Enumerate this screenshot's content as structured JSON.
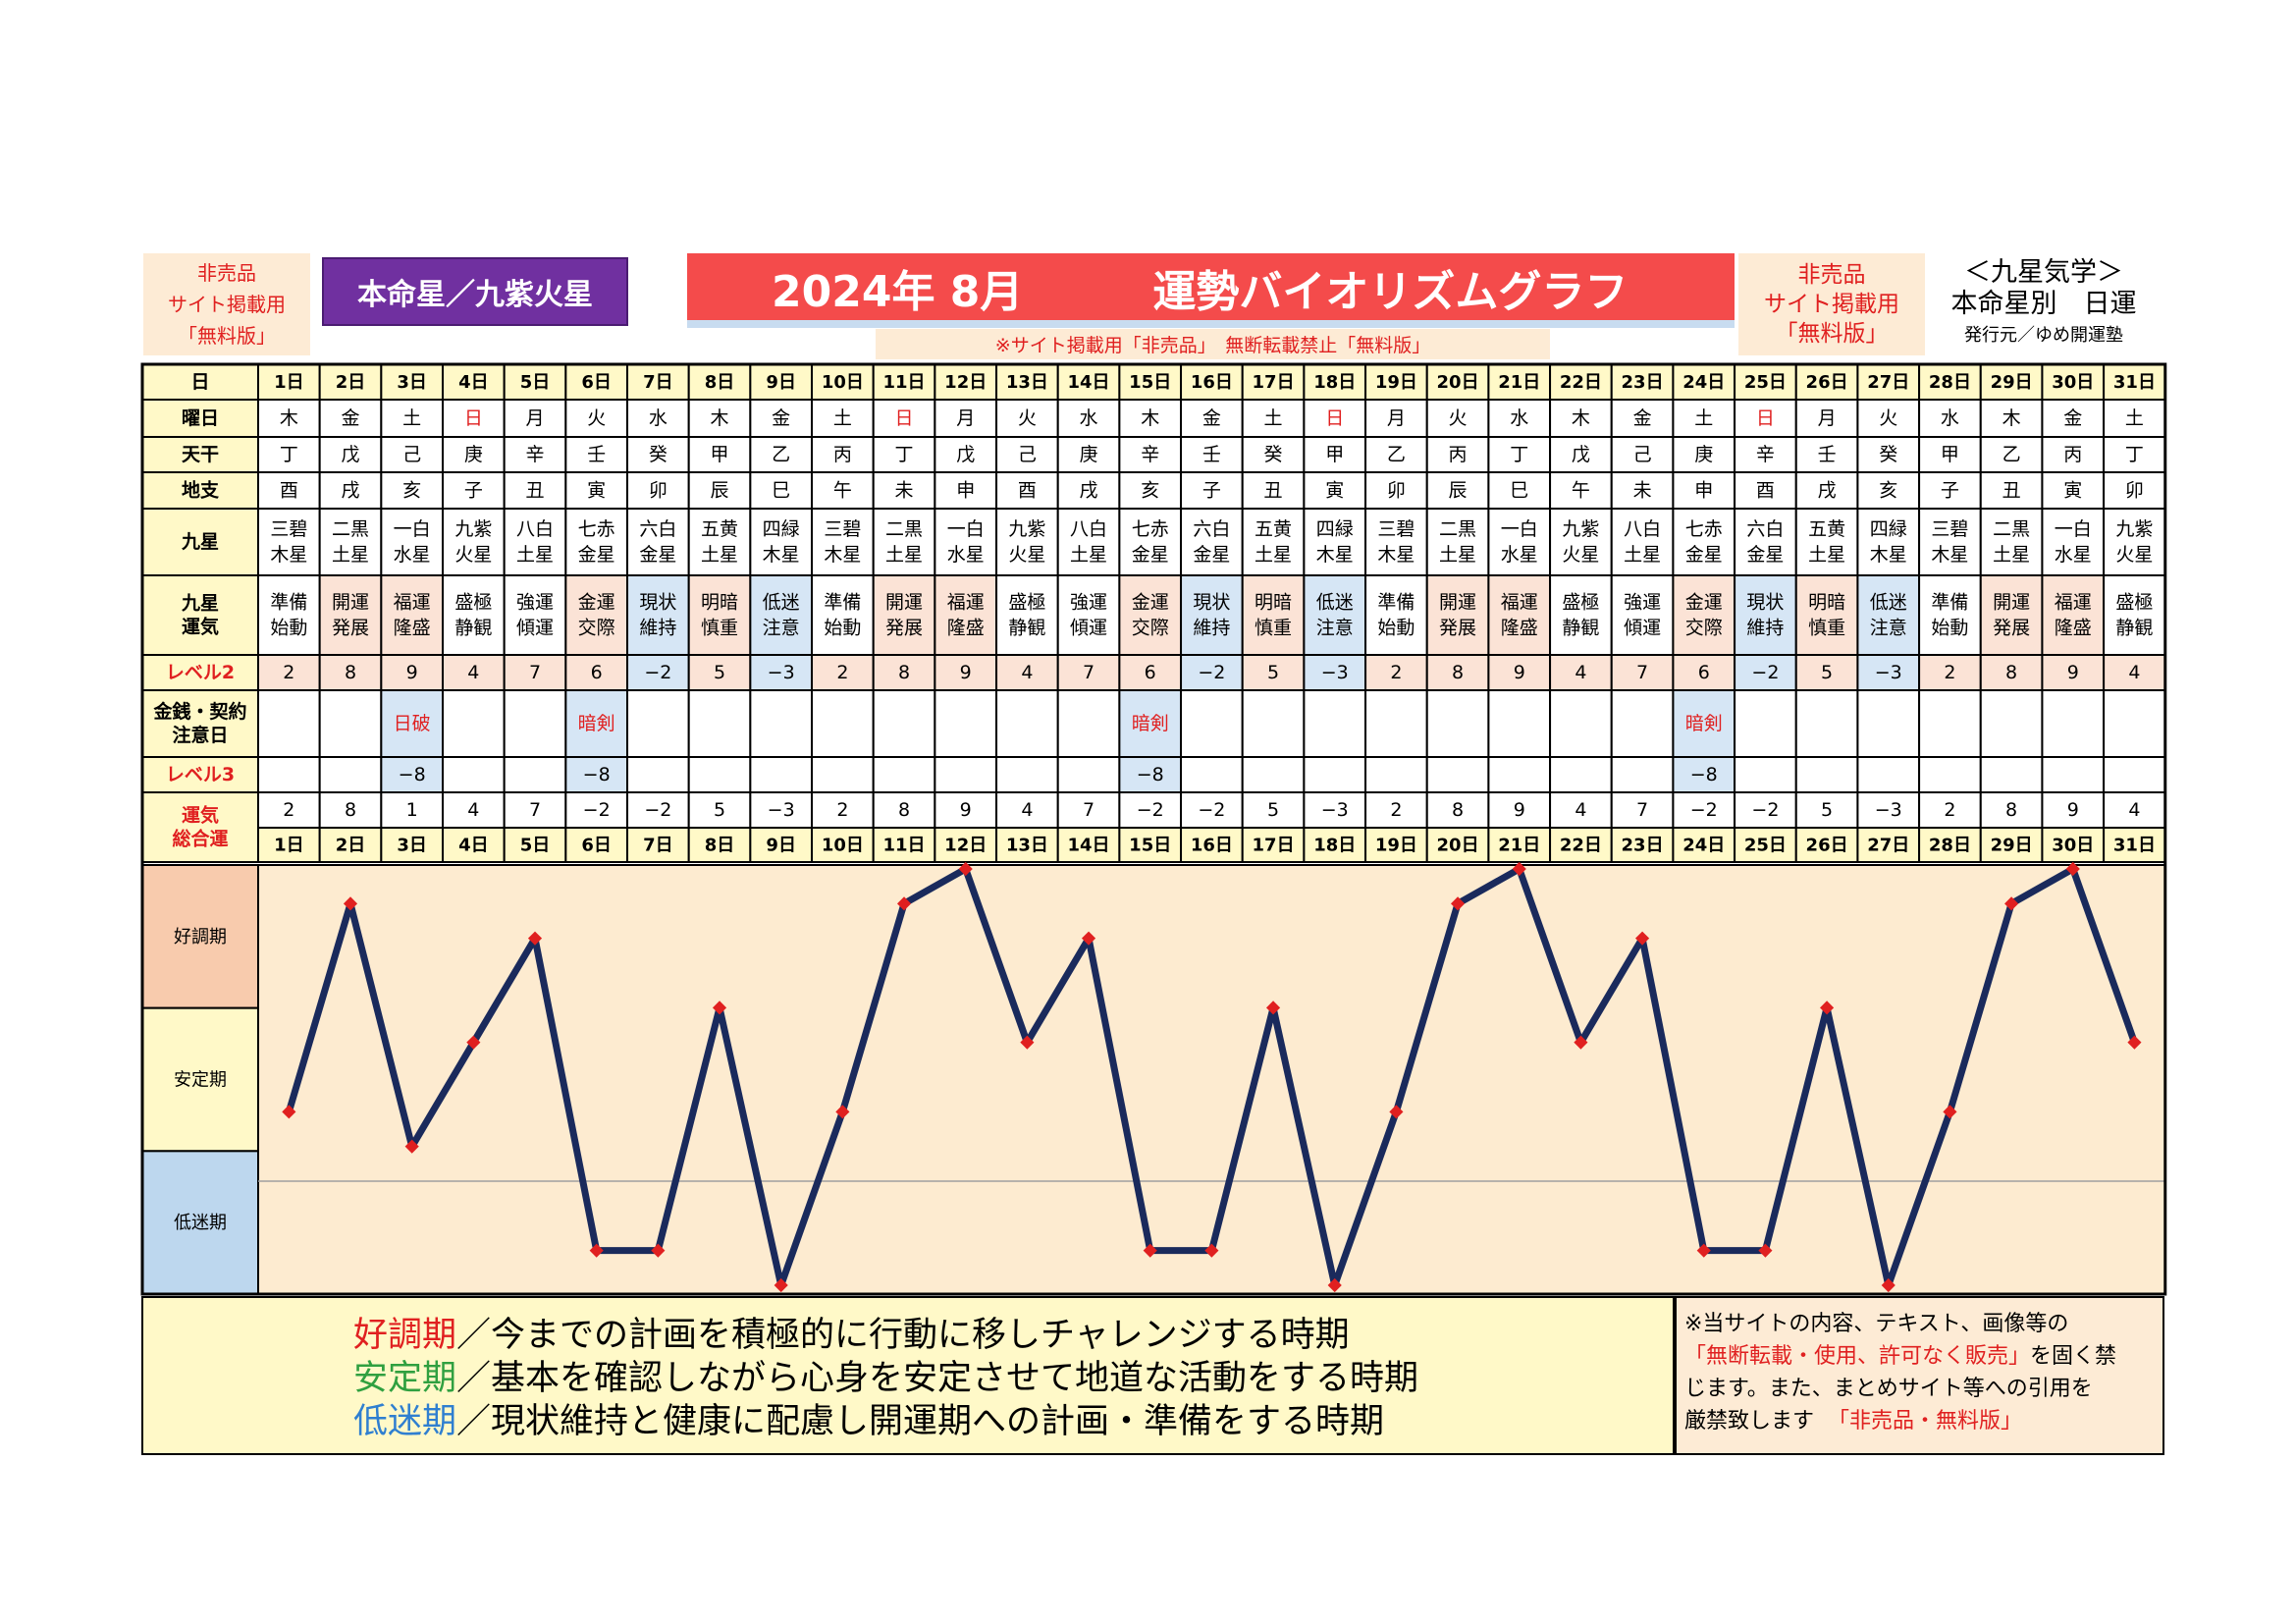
{
  "header": {
    "left_line1": "非売品",
    "left_line2": "サイト掲載用",
    "left_line3": "「無料版」",
    "honmei": "本命星／九紫火星",
    "title": "2024年 8月　　　運勢バイオリズムグラフ",
    "notice": "※サイト掲載用「非売品」　無断転載禁止「無料版」",
    "right_line1": "非売品",
    "right_line2": "サイト掲載用",
    "right_line3": "「無料版」",
    "kyusei_line1": "＜九星気学＞",
    "kyusei_line2": "本命星別　日運",
    "publisher": "発行元／ゆめ開運塾"
  },
  "row_labels": {
    "day": "日",
    "weekday": "曜日",
    "tenkan": "天干",
    "chishi": "地支",
    "kyusei": "九星",
    "unki": "九星\n運気",
    "level2": "レベル2",
    "money": "金銭・契約\n注意日",
    "level3": "レベル3",
    "total": "運気\n総合運"
  },
  "days": [
    "1日",
    "2日",
    "3日",
    "4日",
    "5日",
    "6日",
    "7日",
    "8日",
    "9日",
    "10日",
    "11日",
    "12日",
    "13日",
    "14日",
    "15日",
    "16日",
    "17日",
    "18日",
    "19日",
    "20日",
    "21日",
    "22日",
    "23日",
    "24日",
    "25日",
    "26日",
    "27日",
    "28日",
    "29日",
    "30日",
    "31日"
  ],
  "weekdays": [
    "木",
    "金",
    "土",
    "日",
    "月",
    "火",
    "水",
    "木",
    "金",
    "土",
    "日",
    "月",
    "火",
    "水",
    "木",
    "金",
    "土",
    "日",
    "月",
    "火",
    "水",
    "木",
    "金",
    "土",
    "日",
    "月",
    "火",
    "水",
    "木",
    "金",
    "土"
  ],
  "tenkan": [
    "丁",
    "戊",
    "己",
    "庚",
    "辛",
    "壬",
    "癸",
    "甲",
    "乙",
    "丙",
    "丁",
    "戊",
    "己",
    "庚",
    "辛",
    "壬",
    "癸",
    "甲",
    "乙",
    "丙",
    "丁",
    "戊",
    "己",
    "庚",
    "辛",
    "壬",
    "癸",
    "甲",
    "乙",
    "丙",
    "丁"
  ],
  "chishi": [
    "酉",
    "戌",
    "亥",
    "子",
    "丑",
    "寅",
    "卯",
    "辰",
    "巳",
    "午",
    "未",
    "申",
    "酉",
    "戌",
    "亥",
    "子",
    "丑",
    "寅",
    "卯",
    "辰",
    "巳",
    "午",
    "未",
    "申",
    "酉",
    "戌",
    "亥",
    "子",
    "丑",
    "寅",
    "卯"
  ],
  "kyusei": [
    "三碧\n木星",
    "二黒\n土星",
    "一白\n水星",
    "九紫\n火星",
    "八白\n土星",
    "七赤\n金星",
    "六白\n金星",
    "五黄\n土星",
    "四緑\n木星",
    "三碧\n木星",
    "二黒\n土星",
    "一白\n水星",
    "九紫\n火星",
    "八白\n土星",
    "七赤\n金星",
    "六白\n金星",
    "五黄\n土星",
    "四緑\n木星",
    "三碧\n木星",
    "二黒\n土星",
    "一白\n水星",
    "九紫\n火星",
    "八白\n土星",
    "七赤\n金星",
    "六白\n金星",
    "五黄\n土星",
    "四緑\n木星",
    "三碧\n木星",
    "二黒\n土星",
    "一白\n水星",
    "九紫\n火星"
  ],
  "unki": [
    "準備\n始動",
    "開運\n発展",
    "福運\n隆盛",
    "盛極\n静観",
    "強運\n傾運",
    "金運\n交際",
    "現状\n維持",
    "明暗\n慎重",
    "低迷\n注意",
    "準備\n始動",
    "開運\n発展",
    "福運\n隆盛",
    "盛極\n静観",
    "強運\n傾運",
    "金運\n交際",
    "現状\n維持",
    "明暗\n慎重",
    "低迷\n注意",
    "準備\n始動",
    "開運\n発展",
    "福運\n隆盛",
    "盛極\n静観",
    "強運\n傾運",
    "金運\n交際",
    "現状\n維持",
    "明暗\n慎重",
    "低迷\n注意",
    "準備\n始動",
    "開運\n発展",
    "福運\n隆盛",
    "盛極\n静観"
  ],
  "level2": [
    "2",
    "8",
    "9",
    "4",
    "7",
    "6",
    "−2",
    "5",
    "−3",
    "2",
    "8",
    "9",
    "4",
    "7",
    "6",
    "−2",
    "5",
    "−3",
    "2",
    "8",
    "9",
    "4",
    "7",
    "6",
    "−2",
    "5",
    "−3",
    "2",
    "8",
    "9",
    "4"
  ],
  "money": [
    "",
    "",
    "日破",
    "",
    "",
    "暗剣",
    "",
    "",
    "",
    "",
    "",
    "",
    "",
    "",
    "暗剣",
    "",
    "",
    "",
    "",
    "",
    "",
    "",
    "",
    "暗剣",
    "",
    "",
    "",
    "",
    "",
    "",
    ""
  ],
  "level3": [
    "",
    "",
    "−8",
    "",
    "",
    "−8",
    "",
    "",
    "",
    "",
    "",
    "",
    "",
    "",
    "−8",
    "",
    "",
    "",
    "",
    "",
    "",
    "",
    "",
    "−8",
    "",
    "",
    "",
    "",
    "",
    "",
    ""
  ],
  "total": [
    "2",
    "8",
    "1",
    "4",
    "7",
    "−2",
    "−2",
    "5",
    "−3",
    "2",
    "8",
    "9",
    "4",
    "7",
    "−2",
    "−2",
    "5",
    "−3",
    "2",
    "8",
    "9",
    "4",
    "7",
    "−2",
    "−2",
    "5",
    "−3",
    "2",
    "8",
    "9",
    "4"
  ],
  "chart_data": {
    "type": "line",
    "x": [
      "1日",
      "2日",
      "3日",
      "4日",
      "5日",
      "6日",
      "7日",
      "8日",
      "9日",
      "10日",
      "11日",
      "12日",
      "13日",
      "14日",
      "15日",
      "16日",
      "17日",
      "18日",
      "19日",
      "20日",
      "21日",
      "22日",
      "23日",
      "24日",
      "25日",
      "26日",
      "27日",
      "28日",
      "29日",
      "30日",
      "31日"
    ],
    "series": [
      {
        "values": [
          2,
          8,
          1,
          4,
          7,
          -2,
          -2,
          5,
          -3,
          2,
          8,
          9,
          4,
          7,
          -2,
          -2,
          5,
          -3,
          2,
          8,
          9,
          4,
          7,
          -2,
          -2,
          5,
          -3,
          2,
          8,
          9,
          4
        ]
      }
    ],
    "ylim": [
      -3,
      9
    ],
    "zones": [
      "好調期",
      "安定期",
      "低迷期"
    ],
    "line_color": "#1a2a5c",
    "marker_color": "#e02020",
    "grid": false
  },
  "legend": {
    "kouchou_term": "好調期",
    "kouchou_text": "／今までの計画を積極的に行動に移しチャレンジする時期",
    "antei_term": "安定期",
    "antei_text": "／基本を確認しながら心身を安定させて地道な活動をする時期",
    "teimei_term": "低迷期",
    "teimei_text": "／現状維持と健康に配慮し開運期への計画・準備をする時期"
  },
  "notice": {
    "line1": "※当サイトの内容、テキスト、画像等の",
    "line2_red": "「無断転載・使用、許可なく販売」",
    "line2_rest": "を固く禁",
    "line3": "じます。また、まとめサイト等への引用を",
    "line4": "厳禁致します",
    "line4_red": "「非売品・無料版」"
  },
  "colors": {
    "day_row": "#fff9c8",
    "pink": "#fbe3d6",
    "blue": "#d6e6f5",
    "zone_good": "#f8cbad",
    "zone_stable": "#fff9c8",
    "zone_low": "#bdd7ee",
    "plot_bg": "#fdebd0",
    "red": "#e02020"
  }
}
